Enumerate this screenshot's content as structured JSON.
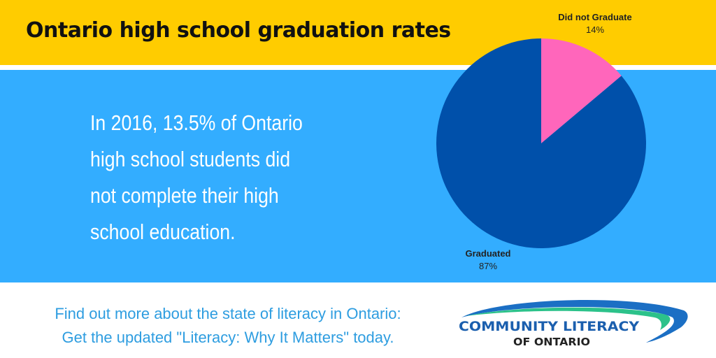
{
  "header": {
    "title": "Ontario high school graduation rates"
  },
  "statement": {
    "text": "In 2016, 13.5% of Ontario high school students did not complete their high school education."
  },
  "chart_data": {
    "type": "pie",
    "slices": [
      {
        "label": "Did not Graduate",
        "value": 14,
        "value_label": "14%",
        "color": "#ff66bb"
      },
      {
        "label": "Graduated",
        "value": 87,
        "value_label": "87%",
        "color": "#0050aa"
      }
    ]
  },
  "footer": {
    "line1": "Find out more about the state of literacy in Ontario:",
    "line2": "Get the updated \"Literacy: Why It Matters\" today."
  },
  "logo": {
    "line1": "COMMUNITY LITERACY",
    "line2": "OF ONTARIO"
  },
  "colors": {
    "header_bg": "#ffcc00",
    "main_bg": "#33adff",
    "footer_text": "#2e9de0"
  }
}
